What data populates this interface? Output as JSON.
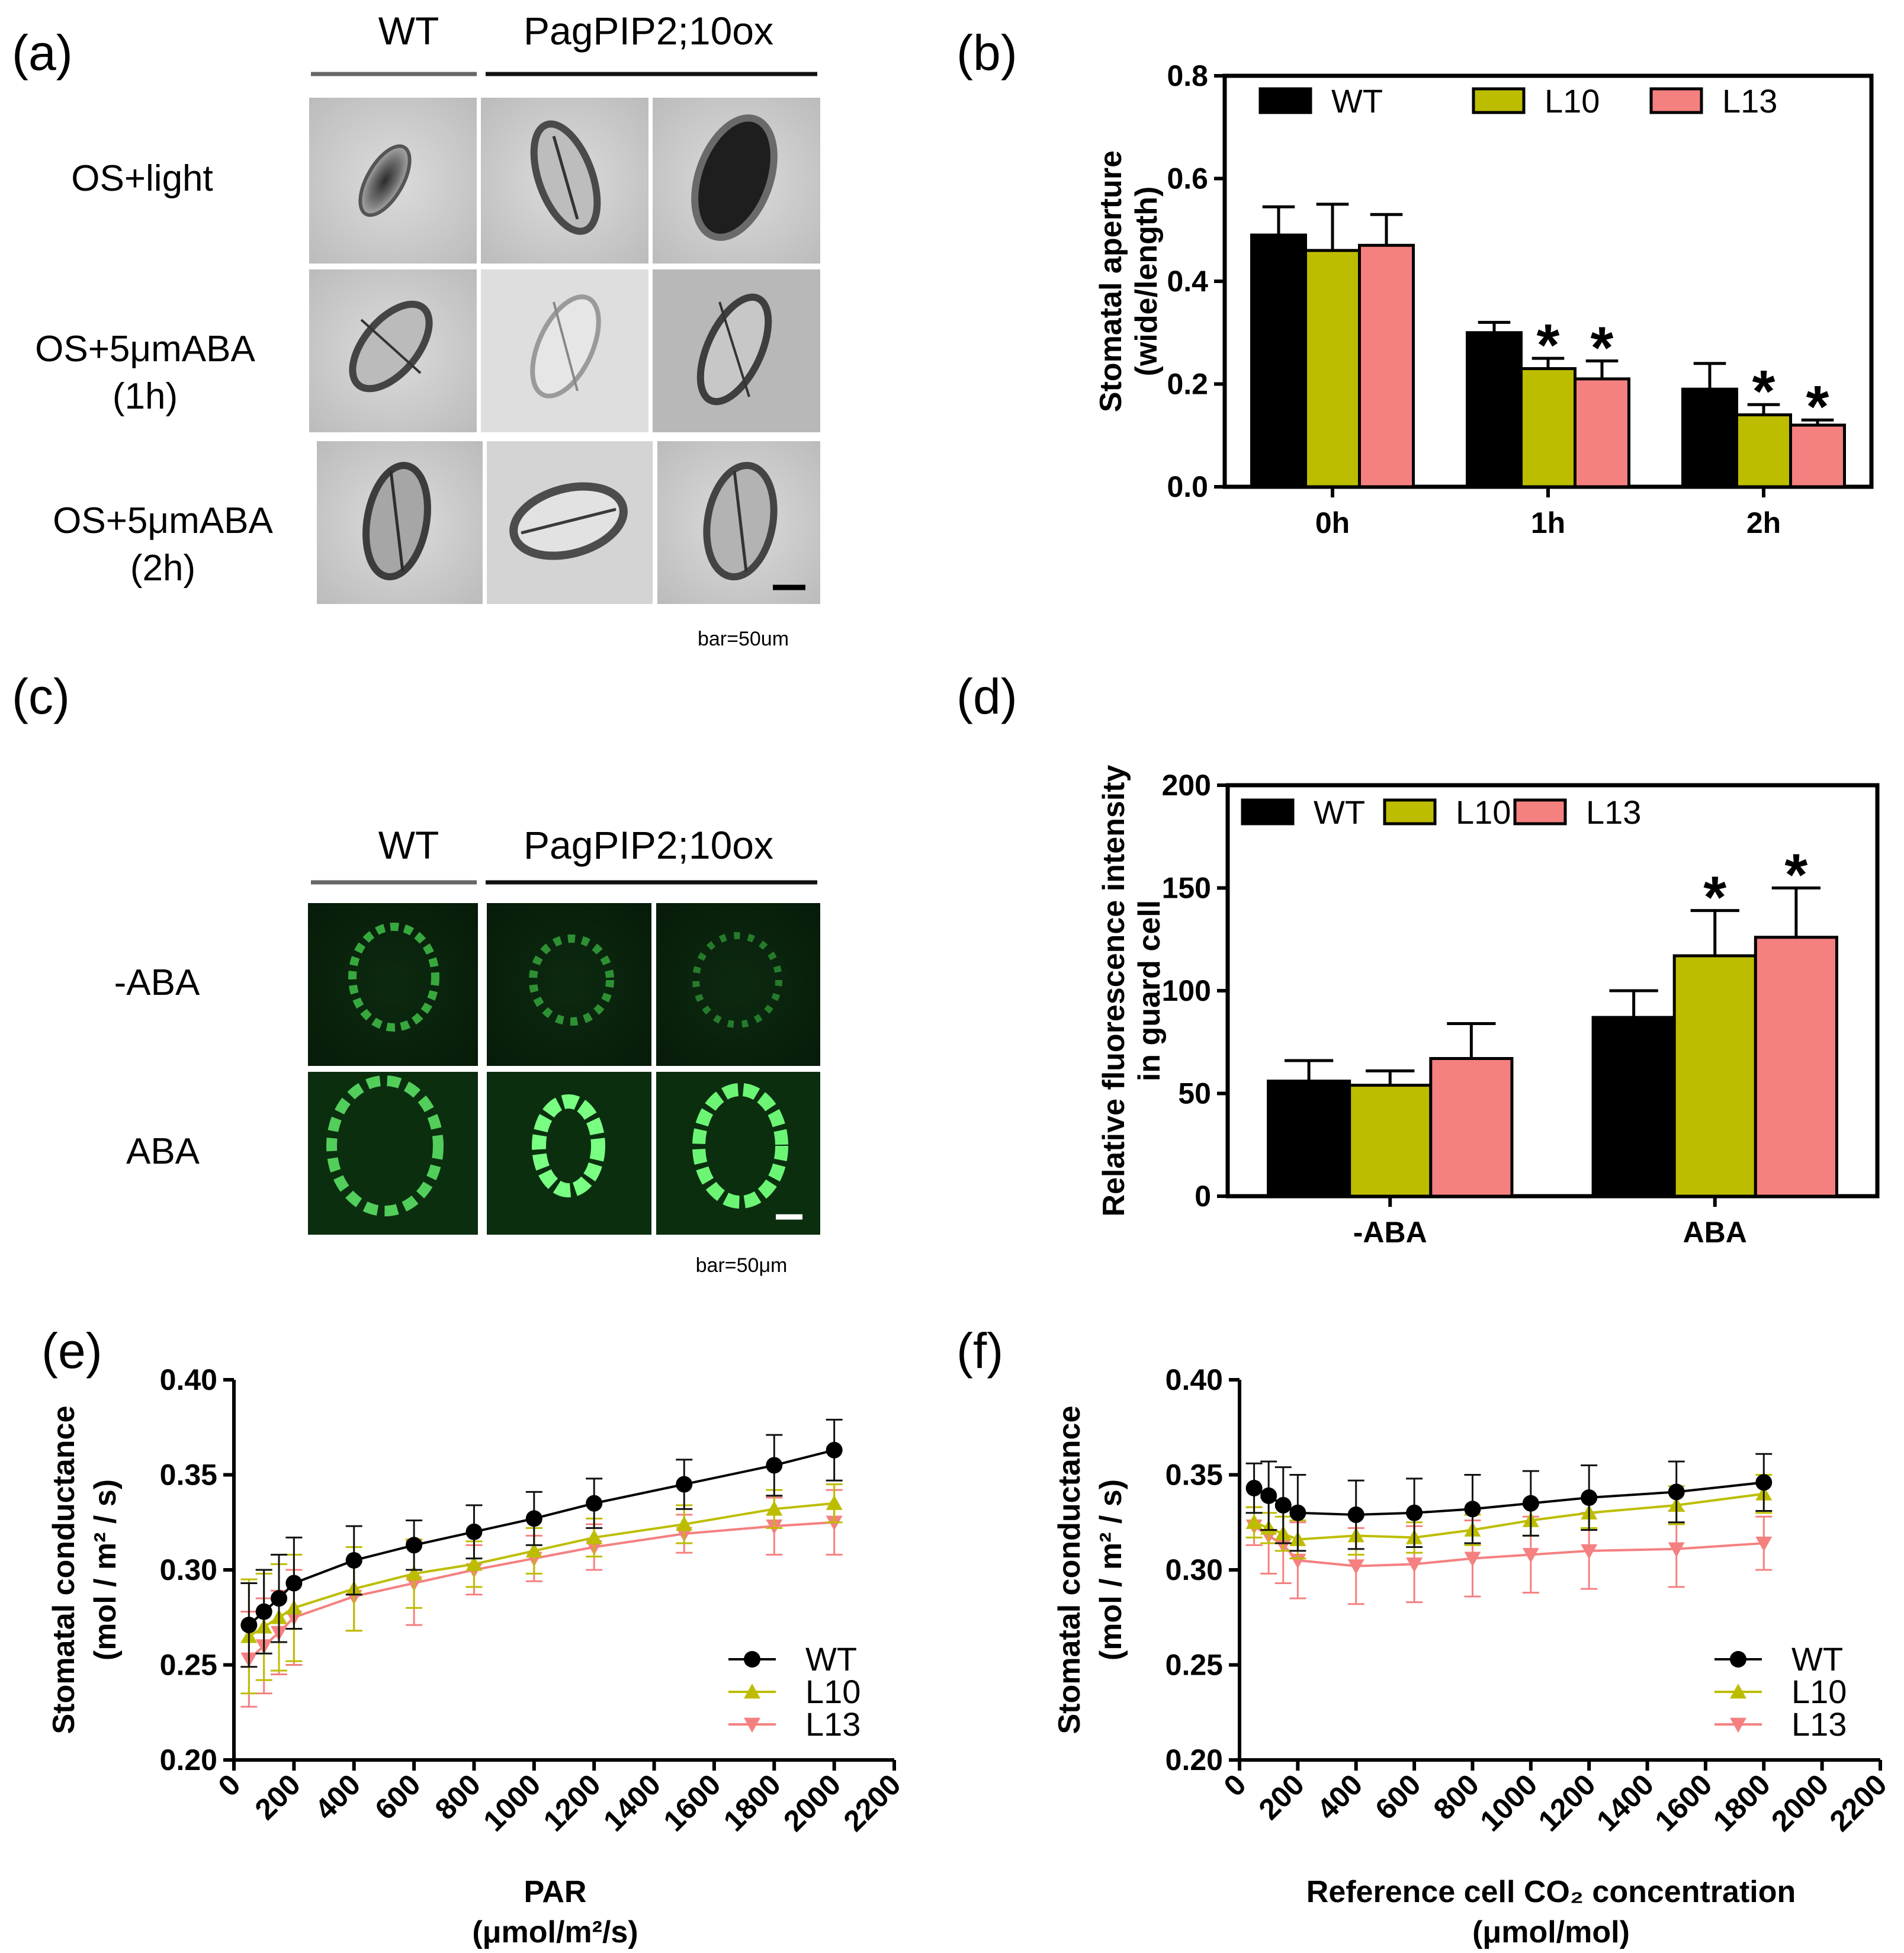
{
  "panel_a": {
    "label": "(a)",
    "header_wt": "WT",
    "header_ox": "PagPIP2;10ox",
    "rows": [
      {
        "line1": "OS+light",
        "line2": ""
      },
      {
        "line1": "OS+5μmABA",
        "line2": "(1h)"
      },
      {
        "line1": "OS+5μmABA",
        "line2": "(2h)"
      }
    ],
    "scale_note": "bar=50um"
  },
  "panel_c": {
    "label": "(c)",
    "header_wt": "WT",
    "header_ox": "PagPIP2;10ox",
    "rows": [
      {
        "line1": "-ABA"
      },
      {
        "line1": "ABA"
      }
    ],
    "scale_note": "bar=50μm"
  },
  "colors": {
    "WT": "#000000",
    "L10": "#bdbd00",
    "L13": "#f58080"
  },
  "chart_data": [
    {
      "panel": "(b)",
      "type": "bar",
      "categories": [
        "0h",
        "1h",
        "2h"
      ],
      "series": [
        {
          "name": "WT",
          "values": [
            0.49,
            0.3,
            0.19
          ],
          "errors": [
            0.055,
            0.02,
            0.05
          ]
        },
        {
          "name": "L10",
          "values": [
            0.46,
            0.23,
            0.14
          ],
          "errors": [
            0.09,
            0.02,
            0.02
          ]
        },
        {
          "name": "L13",
          "values": [
            0.47,
            0.21,
            0.12
          ],
          "errors": [
            0.06,
            0.035,
            0.01
          ]
        }
      ],
      "significance": [
        [
          false,
          false,
          false
        ],
        [
          false,
          true,
          true
        ],
        [
          false,
          true,
          true
        ]
      ],
      "ylabel": [
        "Stomatal aperture",
        "(wide/length)"
      ],
      "ylim": [
        0,
        0.8
      ],
      "yticks": [
        "0.0",
        "0.2",
        "0.4",
        "0.6",
        "0.8"
      ],
      "legend": "top"
    },
    {
      "panel": "(d)",
      "type": "bar",
      "categories": [
        "-ABA",
        "ABA"
      ],
      "series": [
        {
          "name": "WT",
          "values": [
            56,
            87
          ],
          "errors": [
            10,
            13
          ]
        },
        {
          "name": "L10",
          "values": [
            54,
            117
          ],
          "errors": [
            7,
            22
          ]
        },
        {
          "name": "L13",
          "values": [
            67,
            126
          ],
          "errors": [
            17,
            24
          ]
        }
      ],
      "significance": [
        [
          false,
          false
        ],
        [
          false,
          true
        ],
        [
          false,
          true
        ]
      ],
      "ylabel": [
        "Relative  fluorescence intensity",
        "in guard cell"
      ],
      "ylim": [
        0,
        200
      ],
      "yticks": [
        "0",
        "50",
        "100",
        "150",
        "200"
      ],
      "legend": "top"
    },
    {
      "panel": "(e)",
      "type": "line",
      "x": [
        50,
        100,
        150,
        200,
        400,
        600,
        800,
        1000,
        1200,
        1500,
        1800,
        2000
      ],
      "series": [
        {
          "name": "WT",
          "marker": "circle",
          "values": [
            0.271,
            0.278,
            0.285,
            0.293,
            0.305,
            0.313,
            0.32,
            0.327,
            0.335,
            0.345,
            0.355,
            0.363
          ],
          "errors": [
            0.022,
            0.022,
            0.023,
            0.024,
            0.018,
            0.013,
            0.014,
            0.014,
            0.013,
            0.013,
            0.016,
            0.016
          ]
        },
        {
          "name": "L10",
          "marker": "triangle-up",
          "values": [
            0.265,
            0.27,
            0.275,
            0.28,
            0.29,
            0.298,
            0.303,
            0.31,
            0.317,
            0.324,
            0.332,
            0.335
          ],
          "errors": [
            0.03,
            0.028,
            0.028,
            0.028,
            0.022,
            0.018,
            0.012,
            0.012,
            0.01,
            0.01,
            0.01,
            0.01
          ]
        },
        {
          "name": "L13",
          "marker": "triangle-down",
          "values": [
            0.253,
            0.26,
            0.267,
            0.275,
            0.286,
            0.293,
            0.3,
            0.306,
            0.312,
            0.319,
            0.323,
            0.325
          ],
          "errors": [
            0.025,
            0.025,
            0.022,
            0.025,
            0.018,
            0.022,
            0.013,
            0.012,
            0.012,
            0.01,
            0.015,
            0.017
          ]
        }
      ],
      "ylabel": [
        "Stomatal conductance",
        "(mol / m² / s)"
      ],
      "xlabel": [
        "PAR",
        "(μmol/m²/s)"
      ],
      "xlim": [
        0,
        2200
      ],
      "xticks": [
        "0",
        "200",
        "400",
        "600",
        "800",
        "1000",
        "1200",
        "1400",
        "1600",
        "1800",
        "2000",
        "2200"
      ],
      "ylim": [
        0.2,
        0.4
      ],
      "yticks": [
        "0.20",
        "0.25",
        "0.30",
        "0.35",
        "0.40"
      ],
      "legend": "bottom-right"
    },
    {
      "panel": "(f)",
      "type": "line",
      "x": [
        50,
        100,
        150,
        200,
        400,
        600,
        800,
        1000,
        1200,
        1500,
        1800
      ],
      "series": [
        {
          "name": "WT",
          "marker": "circle",
          "values": [
            0.343,
            0.339,
            0.334,
            0.33,
            0.329,
            0.33,
            0.332,
            0.335,
            0.338,
            0.341,
            0.346
          ],
          "errors": [
            0.013,
            0.018,
            0.02,
            0.02,
            0.018,
            0.018,
            0.018,
            0.017,
            0.017,
            0.016,
            0.015
          ]
        },
        {
          "name": "L10",
          "marker": "triangle-up",
          "values": [
            0.325,
            0.322,
            0.319,
            0.316,
            0.318,
            0.317,
            0.321,
            0.326,
            0.33,
            0.334,
            0.34
          ],
          "errors": [
            0.008,
            0.008,
            0.009,
            0.01,
            0.01,
            0.008,
            0.008,
            0.008,
            0.008,
            0.01,
            0.01
          ]
        },
        {
          "name": "L13",
          "marker": "triangle-down",
          "values": [
            0.323,
            0.318,
            0.313,
            0.305,
            0.302,
            0.303,
            0.306,
            0.308,
            0.31,
            0.311,
            0.314
          ],
          "errors": [
            0.01,
            0.02,
            0.02,
            0.02,
            0.02,
            0.02,
            0.02,
            0.02,
            0.02,
            0.02,
            0.014
          ]
        }
      ],
      "ylabel": [
        "Stomatal conductance",
        "(mol / m² / s)"
      ],
      "xlabel": [
        "Reference cell CO₂ concentration",
        "(μmol/mol)"
      ],
      "xlim": [
        0,
        2200
      ],
      "xticks": [
        "0",
        "200",
        "400",
        "600",
        "800",
        "1000",
        "1200",
        "1400",
        "1600",
        "1800",
        "2000",
        "2200"
      ],
      "ylim": [
        0.2,
        0.4
      ],
      "yticks": [
        "0.20",
        "0.25",
        "0.30",
        "0.35",
        "0.40"
      ],
      "legend": "bottom-right"
    }
  ]
}
